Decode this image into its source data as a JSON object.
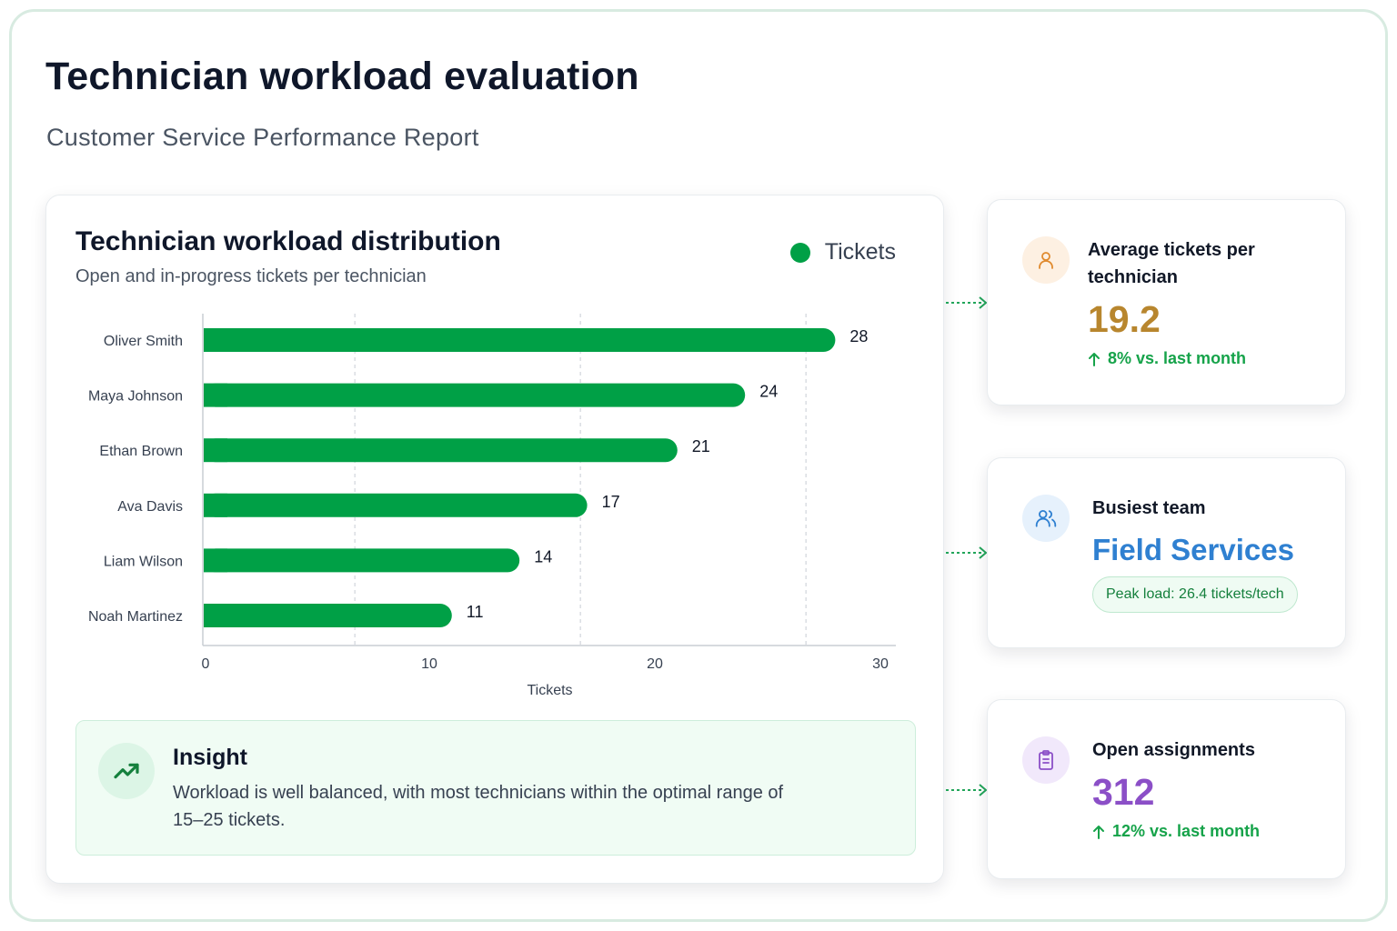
{
  "page": {
    "title": "Technician workload evaluation",
    "subtitle": "Customer Service Performance Report"
  },
  "chart_data": {
    "type": "bar",
    "orientation": "horizontal",
    "title": "Technician workload distribution",
    "subtitle": "Open and in-progress tickets per technician",
    "categories": [
      "Oliver Smith",
      "Maya Johnson",
      "Ethan Brown",
      "Ava Davis",
      "Liam Wilson",
      "Noah Martinez"
    ],
    "series": [
      {
        "name": "Tickets",
        "values": [
          28,
          24,
          21,
          17,
          14,
          11
        ],
        "color": "#00a046"
      }
    ],
    "xlabel": "Tickets",
    "ylabel": "",
    "xlim": [
      0,
      30
    ],
    "xticks": [
      "0",
      "10",
      "20",
      "30"
    ],
    "grid": "vertical dashed",
    "legend": "top-right"
  },
  "insight": {
    "title": "Insight",
    "text": "Workload is well balanced, with most technicians within the optimal range of 15–25 tickets.",
    "icon": "trending-up-icon"
  },
  "kpis": {
    "avg": {
      "label": "Average tickets per technician",
      "value": "19.2",
      "change": "8% vs. last month",
      "icon": "user-icon",
      "color": "#b8862e"
    },
    "team": {
      "label": "Busiest team",
      "value": "Field Services",
      "pill": "Peak load: 26.4 tickets/tech",
      "icon": "users-icon",
      "color": "#2f80d1"
    },
    "open": {
      "label": "Open assignments",
      "value": "312",
      "change": "12% vs. last month",
      "icon": "clipboard-icon",
      "color": "#8b4fc7"
    }
  }
}
